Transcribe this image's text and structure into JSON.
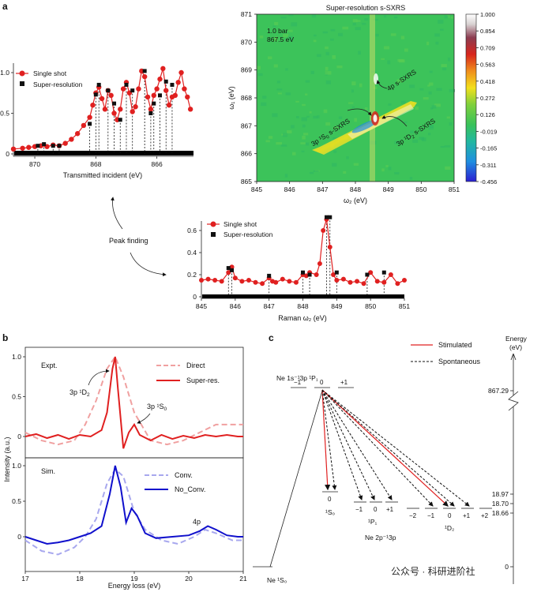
{
  "panel_labels": {
    "a": "a",
    "b": "b",
    "c": "c"
  },
  "heatmap": {
    "title": "Super-resolution s-SXRS",
    "xlabel": "ω₂ (eV)",
    "ylabel": "ω₁ (eV)",
    "xticks": [
      "845",
      "846",
      "847",
      "848",
      "849",
      "850",
      "851"
    ],
    "yticks": [
      "871",
      "870",
      "869",
      "868",
      "867",
      "866",
      "865"
    ],
    "inset_line1": "1.0 bar",
    "inset_line2": "867.5 eV",
    "ann_4p": "4p s-SXRS",
    "ann_1s0_main": "3p ¹S",
    "ann_1s0_sub": "0",
    "ann_1s0_tail": " s-SXRS",
    "ann_1d2_main": "3p ¹D",
    "ann_1d2_sub": "2",
    "ann_1d2_tail": " s-SXRS",
    "colorbar_ticks": [
      "1.000",
      "0.854",
      "0.709",
      "0.563",
      "0.418",
      "0.272",
      "0.126",
      "-0.019",
      "-0.165",
      "-0.311",
      "-0.456"
    ],
    "colors": [
      "#2b1fd1",
      "#1f8fe0",
      "#22b8a0",
      "#39c25a",
      "#7fd03c",
      "#f3e01c",
      "#f08f1c",
      "#d8251c",
      "#8c3c50",
      "#d8d2d2",
      "#ffffff"
    ]
  },
  "panel_a_left": {
    "xlabel": "Transmitted incident (eV)",
    "xticks": [
      "870",
      "868",
      "866"
    ],
    "yticks": [
      "1.0",
      "0.5",
      "0"
    ],
    "legend": [
      "Single shot",
      "Super-resolution"
    ],
    "peak_finding": "Peak finding"
  },
  "panel_a_right": {
    "xlabel": "Raman ω₂ (eV)",
    "xticks": [
      "845",
      "846",
      "847",
      "848",
      "849",
      "850",
      "851"
    ],
    "yticks": [
      "0.6",
      "0.4",
      "0.2",
      "0"
    ],
    "legend": [
      "Single shot",
      "Super-resolution"
    ]
  },
  "panel_b": {
    "ylabel": "Intensity (a.u.)",
    "xlabel": "Energy loss (eV)",
    "xticks": [
      "17",
      "18",
      "19",
      "20",
      "21"
    ],
    "top_yticks": [
      "1.0",
      "0.5",
      "0"
    ],
    "bottom_yticks": [
      "1.0",
      "0.5",
      "0"
    ],
    "expt": "Expt.",
    "sim": "Sim.",
    "legend_top": [
      "Direct",
      "Super-res."
    ],
    "legend_bottom": [
      "Conv.",
      "No_Conv."
    ],
    "ann_1d2_main": "3p ¹D",
    "ann_1d2_sub": "2",
    "ann_1s0_main": "3p ¹S",
    "ann_1s0_sub": "0",
    "ann_4p": "4p"
  },
  "panel_c": {
    "legend": [
      "Stimulated",
      "Spontaneous"
    ],
    "energy_label": "Energy",
    "energy_unit": "(eV)",
    "energies": [
      "867.29",
      "18.97",
      "18.70",
      "18.66",
      "0"
    ],
    "top_state": "Ne 1s⁻¹3p ¹P₁",
    "top_m": [
      "−1",
      "0",
      "+1"
    ],
    "mid_state": "Ne 2p⁻¹3p",
    "ground": "Ne ¹S₀",
    "s0_m": "0",
    "s0_label": "¹S₀",
    "p1_m": [
      "−1",
      "0",
      "+1"
    ],
    "p1_label": "¹P₁",
    "d2_m": [
      "−2",
      "−1",
      "0",
      "+1",
      "+2"
    ],
    "d2_label": "¹D₂",
    "watermark": "公众号 · 科研进阶社"
  },
  "chart_data": [
    {
      "type": "line",
      "title": "",
      "xlabel": "Transmitted incident (eV)",
      "ylabel": "",
      "xlim": [
        870.7,
        864.8
      ],
      "ylim": [
        0,
        1.1
      ],
      "series": [
        {
          "name": "Single shot",
          "x": [
            870.7,
            870.4,
            870.2,
            870.0,
            869.8,
            869.6,
            869.4,
            869.2,
            869.0,
            868.8,
            868.6,
            868.4,
            868.2,
            868.1,
            868.0,
            867.9,
            867.8,
            867.7,
            867.6,
            867.5,
            867.4,
            867.3,
            867.2,
            867.1,
            867.0,
            866.9,
            866.8,
            866.7,
            866.6,
            866.5,
            866.4,
            866.3,
            866.2,
            866.1,
            866.0,
            865.9,
            865.8,
            865.7,
            865.6,
            865.5,
            865.4,
            865.3,
            865.2,
            865.1,
            865.0,
            864.9
          ],
          "y": [
            0.06,
            0.07,
            0.08,
            0.09,
            0.1,
            0.09,
            0.11,
            0.1,
            0.13,
            0.18,
            0.25,
            0.35,
            0.45,
            0.6,
            0.75,
            0.82,
            0.68,
            0.55,
            0.78,
            0.72,
            0.5,
            0.42,
            0.55,
            0.8,
            0.88,
            0.75,
            0.52,
            0.58,
            0.8,
            1.02,
            0.95,
            0.7,
            0.55,
            0.72,
            0.8,
            0.92,
            1.05,
            0.78,
            0.6,
            0.7,
            0.72,
            0.88,
            1.0,
            0.8,
            0.7,
            0.55
          ]
        },
        {
          "name": "Super-resolution",
          "x": [
            869.9,
            869.7,
            869.4,
            869.2,
            868.2,
            868.0,
            867.9,
            867.6,
            867.4,
            867.2,
            867.0,
            866.8,
            866.4,
            866.2,
            866.1,
            865.9,
            865.7,
            865.5
          ],
          "y": [
            0.1,
            0.12,
            0.1,
            0.1,
            0.37,
            0.73,
            0.85,
            0.78,
            0.62,
            0.42,
            0.85,
            0.78,
            1.02,
            0.5,
            0.62,
            0.72,
            0.89,
            0.85
          ]
        }
      ]
    },
    {
      "type": "heatmap",
      "title": "Super-resolution s-SXRS",
      "xlabel": "ω₂ (eV)",
      "ylabel": "ω₁ (eV)",
      "xlim": [
        845,
        851
      ],
      "ylim": [
        865,
        871
      ],
      "colorbar_range": [
        -0.456,
        1.0
      ]
    },
    {
      "type": "line",
      "title": "",
      "xlabel": "Raman ω₂ (eV)",
      "ylabel": "",
      "xlim": [
        845,
        851
      ],
      "ylim": [
        0,
        0.7
      ],
      "series": [
        {
          "name": "Single shot",
          "x": [
            845.0,
            845.2,
            845.4,
            845.6,
            845.8,
            845.9,
            846.0,
            846.2,
            846.4,
            846.6,
            846.8,
            847.0,
            847.1,
            847.2,
            847.4,
            847.6,
            847.8,
            848.0,
            848.1,
            848.2,
            848.4,
            848.5,
            848.6,
            848.7,
            848.8,
            848.9,
            849.0,
            849.2,
            849.4,
            849.6,
            849.8,
            850.0,
            850.2,
            850.4,
            850.6,
            850.8,
            851.0
          ],
          "y": [
            0.15,
            0.16,
            0.15,
            0.14,
            0.22,
            0.27,
            0.17,
            0.14,
            0.15,
            0.13,
            0.12,
            0.17,
            0.14,
            0.13,
            0.16,
            0.14,
            0.13,
            0.2,
            0.19,
            0.22,
            0.2,
            0.3,
            0.6,
            0.7,
            0.45,
            0.2,
            0.15,
            0.16,
            0.13,
            0.14,
            0.12,
            0.22,
            0.14,
            0.13,
            0.2,
            0.12,
            0.15
          ]
        },
        {
          "name": "Super-resolution",
          "x": [
            845.8,
            845.9,
            847.0,
            848.0,
            848.2,
            848.7,
            848.8,
            849.0,
            849.9,
            850.4
          ],
          "y": [
            0.26,
            0.24,
            0.19,
            0.22,
            0.2,
            0.72,
            0.72,
            0.22,
            0.2,
            0.22
          ]
        }
      ]
    },
    {
      "type": "line",
      "title": "",
      "xlabel": "Energy loss (eV)",
      "ylabel": "Intensity (a.u.)",
      "xlim": [
        17,
        21
      ],
      "ylim": [
        -0.2,
        1.1
      ],
      "series": [
        {
          "name": "Direct",
          "x": [
            17.0,
            17.3,
            17.6,
            17.9,
            18.1,
            18.3,
            18.5,
            18.65,
            18.8,
            19.0,
            19.3,
            19.6,
            19.9,
            20.2,
            20.5,
            20.8,
            21.0
          ],
          "y": [
            0.05,
            -0.05,
            -0.1,
            -0.05,
            0.15,
            0.45,
            0.85,
            1.0,
            0.75,
            0.3,
            -0.05,
            -0.1,
            -0.05,
            0.05,
            0.15,
            0.15,
            0.15
          ]
        },
        {
          "name": "Super-res.",
          "x": [
            17.0,
            17.2,
            17.4,
            17.6,
            17.8,
            18.0,
            18.2,
            18.4,
            18.5,
            18.6,
            18.65,
            18.7,
            18.8,
            18.9,
            19.0,
            19.1,
            19.3,
            19.5,
            19.7,
            19.9,
            20.1,
            20.3,
            20.5,
            20.7,
            20.9,
            21.0
          ],
          "y": [
            0.0,
            0.03,
            -0.02,
            0.02,
            -0.03,
            0.02,
            0.0,
            0.08,
            0.3,
            0.85,
            1.0,
            0.6,
            -0.15,
            0.05,
            0.15,
            0.02,
            -0.05,
            0.02,
            -0.03,
            0.01,
            -0.02,
            0.02,
            0.0,
            0.02,
            0.0,
            0.0
          ]
        }
      ]
    },
    {
      "type": "line",
      "title": "",
      "xlabel": "Energy loss (eV)",
      "ylabel": "Intensity (a.u.)",
      "xlim": [
        17,
        21
      ],
      "ylim": [
        -0.3,
        1.1
      ],
      "series": [
        {
          "name": "Conv.",
          "x": [
            17.0,
            17.3,
            17.6,
            17.9,
            18.1,
            18.3,
            18.5,
            18.65,
            18.8,
            19.0,
            19.2,
            19.5,
            19.8,
            20.1,
            20.3,
            20.5,
            20.8,
            21.0
          ],
          "y": [
            -0.05,
            -0.2,
            -0.25,
            -0.15,
            0.0,
            0.25,
            0.75,
            0.95,
            0.85,
            0.35,
            0.1,
            -0.05,
            -0.1,
            0.0,
            0.1,
            0.05,
            -0.05,
            -0.05
          ]
        },
        {
          "name": "No_Conv.",
          "x": [
            17.0,
            17.2,
            17.4,
            17.6,
            17.8,
            18.0,
            18.2,
            18.4,
            18.55,
            18.65,
            18.75,
            18.85,
            18.95,
            19.05,
            19.2,
            19.4,
            19.7,
            20.0,
            20.2,
            20.35,
            20.5,
            20.7,
            20.9,
            21.0
          ],
          "y": [
            0.0,
            -0.05,
            -0.1,
            -0.08,
            -0.05,
            0.0,
            0.05,
            0.15,
            0.6,
            1.0,
            0.7,
            0.2,
            0.4,
            0.3,
            0.05,
            -0.02,
            0.0,
            0.02,
            0.08,
            0.15,
            0.1,
            0.02,
            0.0,
            0.0
          ]
        }
      ]
    }
  ]
}
